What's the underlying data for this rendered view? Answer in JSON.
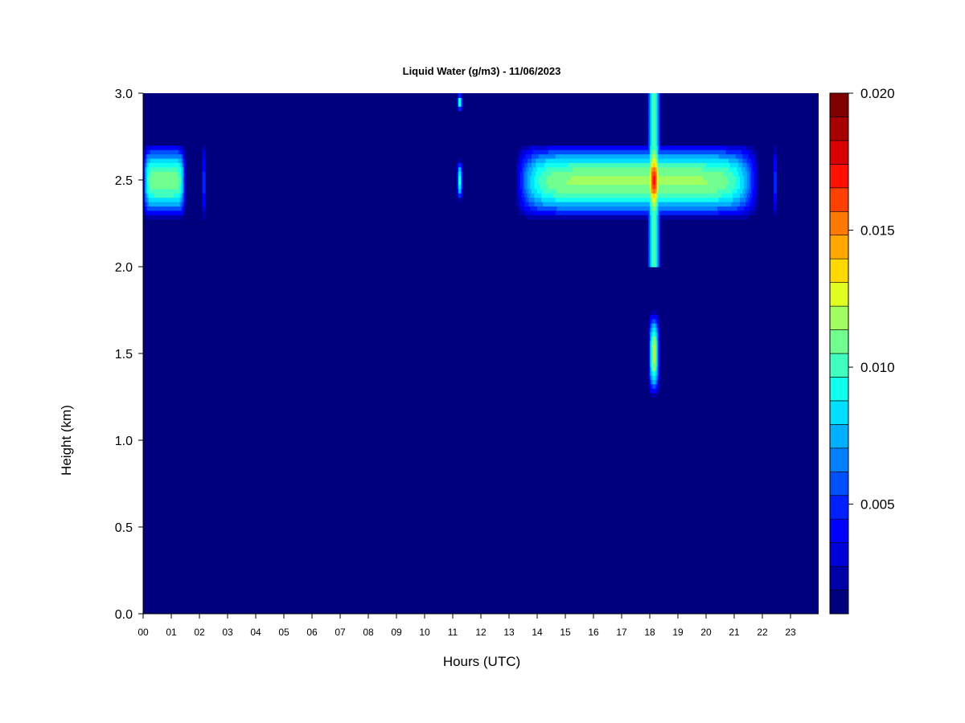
{
  "chart_data": {
    "type": "heatmap",
    "title": "Liquid Water (g/m3) - 11/06/2023",
    "xlabel": "Hours (UTC)",
    "ylabel": "Height (km)",
    "xlim": [
      0,
      24
    ],
    "ylim": [
      0,
      3.0
    ],
    "x_ticks": [
      "00",
      "01",
      "02",
      "03",
      "04",
      "05",
      "06",
      "07",
      "08",
      "09",
      "10",
      "11",
      "12",
      "13",
      "14",
      "15",
      "16",
      "17",
      "18",
      "19",
      "20",
      "21",
      "22",
      "23"
    ],
    "y_ticks": [
      "0.0",
      "0.5",
      "1.0",
      "1.5",
      "2.0",
      "2.5",
      "3.0"
    ],
    "colorbar": {
      "range": [
        0.001,
        0.02
      ],
      "ticks": [
        "0.005",
        "0.010",
        "0.015",
        "0.020"
      ],
      "tick_values": [
        0.005,
        0.01,
        0.015,
        0.02
      ],
      "colors": [
        "#00007f",
        "#0000a8",
        "#0000d8",
        "#0000ff",
        "#0020ff",
        "#0050ff",
        "#0080ff",
        "#00b0ff",
        "#00dfff",
        "#10ffef",
        "#40ffbf",
        "#70ff8f",
        "#a0ff5f",
        "#e0ff20",
        "#ffd800",
        "#ffa800",
        "#ff7800",
        "#ff4000",
        "#ff1000",
        "#d80000",
        "#a80000",
        "#800000"
      ]
    },
    "background_value": 0.001,
    "cloud_features": [
      {
        "name": "layer",
        "x": [
          0.0,
          1.5
        ],
        "y": [
          2.27,
          2.72
        ],
        "peak": 0.011
      },
      {
        "name": "streak",
        "x": [
          2.1,
          2.2
        ],
        "y": [
          2.25,
          2.73
        ],
        "peak": 0.006
      },
      {
        "name": "streak",
        "x": [
          11.15,
          11.35
        ],
        "y": [
          2.9,
          3.0
        ],
        "peak": 0.01
      },
      {
        "name": "streak",
        "x": [
          11.15,
          11.35
        ],
        "y": [
          2.38,
          2.62
        ],
        "peak": 0.01
      },
      {
        "name": "layer",
        "x": [
          13.2,
          21.9
        ],
        "y": [
          2.27,
          2.72
        ],
        "peak": 0.0115
      },
      {
        "name": "streak",
        "x": [
          22.4,
          22.5
        ],
        "y": [
          2.27,
          2.72
        ],
        "peak": 0.006
      },
      {
        "name": "column",
        "x": [
          17.9,
          18.4
        ],
        "y": [
          2.0,
          3.0
        ],
        "peak": 0.017
      },
      {
        "name": "patch",
        "x": [
          17.95,
          18.35
        ],
        "y": [
          1.25,
          1.75
        ],
        "peak": 0.012
      }
    ]
  }
}
